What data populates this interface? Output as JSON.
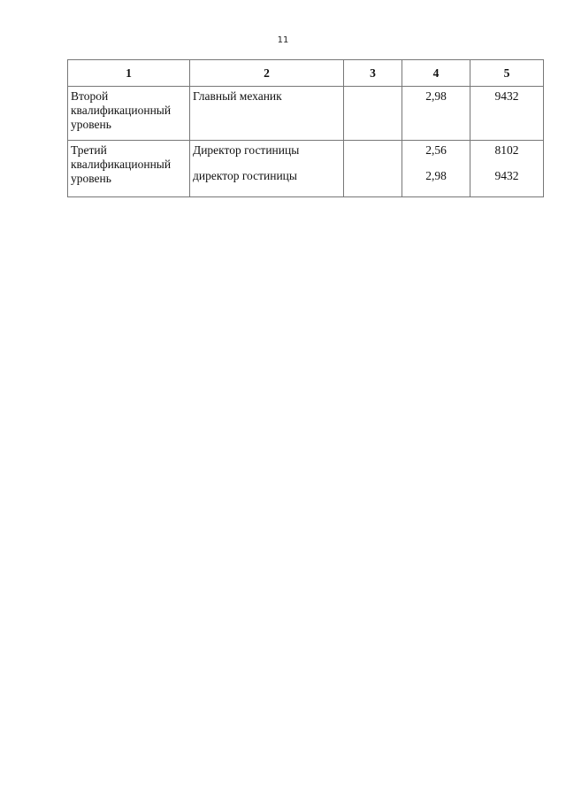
{
  "page_number": "11",
  "table": {
    "headers": [
      "1",
      "2",
      "3",
      "4",
      "5"
    ],
    "rows": [
      {
        "level": "Второй квалификационный уровень",
        "positions": [
          "Главный механик"
        ],
        "col3": "",
        "coefficients": [
          "2,98"
        ],
        "salaries": [
          "9432"
        ]
      },
      {
        "level": "Третий квалификационный уровень",
        "positions": [
          "Директор гостиницы",
          "директор гостиницы"
        ],
        "col3": "",
        "coefficients": [
          "2,56",
          "2,98"
        ],
        "salaries": [
          "8102",
          "9432"
        ]
      }
    ]
  }
}
